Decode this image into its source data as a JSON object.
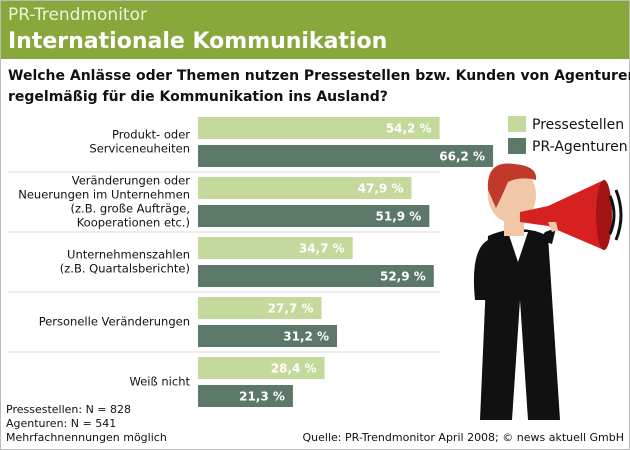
{
  "chart_data": {
    "type": "bar",
    "orientation": "horizontal",
    "header": "PR-Trendmonitor",
    "title": "Internationale Kommunikation",
    "question": [
      "Welche Anlässe oder Themen nutzen Pressestellen bzw. Kunden von Agenturen",
      "regelmäßig für die Kommunikation ins Ausland?"
    ],
    "categories": [
      [
        "Produkt- oder",
        "Serviceneuheiten"
      ],
      [
        "Veränderungen oder",
        "Neuerungen im Unternehmen",
        "(z.B. große Aufträge,",
        "Kooperationen etc.)"
      ],
      [
        "Unternehmenszahlen",
        "(z.B. Quartalsberichte)"
      ],
      [
        "Personelle Veränderungen"
      ],
      [
        "Weiß nicht"
      ]
    ],
    "series": [
      {
        "name": "Pressestellen",
        "color": "#c6d99c",
        "values": [
          54.2,
          47.9,
          34.7,
          27.7,
          28.4
        ],
        "value_labels": [
          "54,2 %",
          "47,9 %",
          "34,7 %",
          "27,7 %",
          "28,4 %"
        ]
      },
      {
        "name": "PR-Agenturen",
        "color": "#5c7868",
        "values": [
          66.2,
          51.9,
          52.9,
          31.2,
          21.3
        ],
        "value_labels": [
          "66,2 %",
          "51,9 %",
          "52,9 %",
          "31,2 %",
          "21,3 %"
        ]
      }
    ],
    "xlim": [
      0,
      70
    ],
    "legend": "top-right",
    "notes": [
      "Pressestellen: N = 828",
      "Agenturen: N = 541",
      "Mehrfachnennungen möglich"
    ],
    "source": "Quelle: PR-Trendmonitor April 2008; © news aktuell GmbH"
  }
}
